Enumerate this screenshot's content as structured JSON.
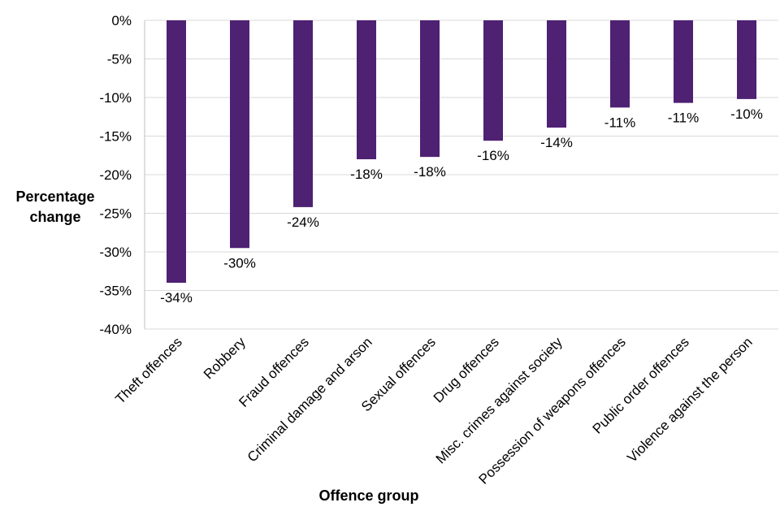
{
  "chart_data": {
    "type": "bar",
    "title": "",
    "xlabel": "Offence group",
    "ylabel": [
      "Percentage",
      "change"
    ],
    "ylim": [
      -40,
      0
    ],
    "ytick_step": 5,
    "ytick_labels": [
      "0%",
      "-5%",
      "-10%",
      "-15%",
      "-20%",
      "-25%",
      "-30%",
      "-35%",
      "-40%"
    ],
    "grid": true,
    "bar_color": "#4e2173",
    "categories": [
      "Theft offences",
      "Robbery",
      "Fraud offences",
      "Criminal damage and arson",
      "Sexual offences",
      "Drug offences",
      "Misc. crimes against society",
      "Possession of weapons offences",
      "Public order offences",
      "Violence against the person"
    ],
    "values": [
      -34,
      -29.5,
      -24.2,
      -18,
      -17.7,
      -15.6,
      -13.9,
      -11.3,
      -10.7,
      -10.2
    ],
    "value_labels": [
      "-34%",
      "-30%",
      "-24%",
      "-18%",
      "-18%",
      "-16%",
      "-14%",
      "-11%",
      "-11%",
      "-10%"
    ]
  }
}
